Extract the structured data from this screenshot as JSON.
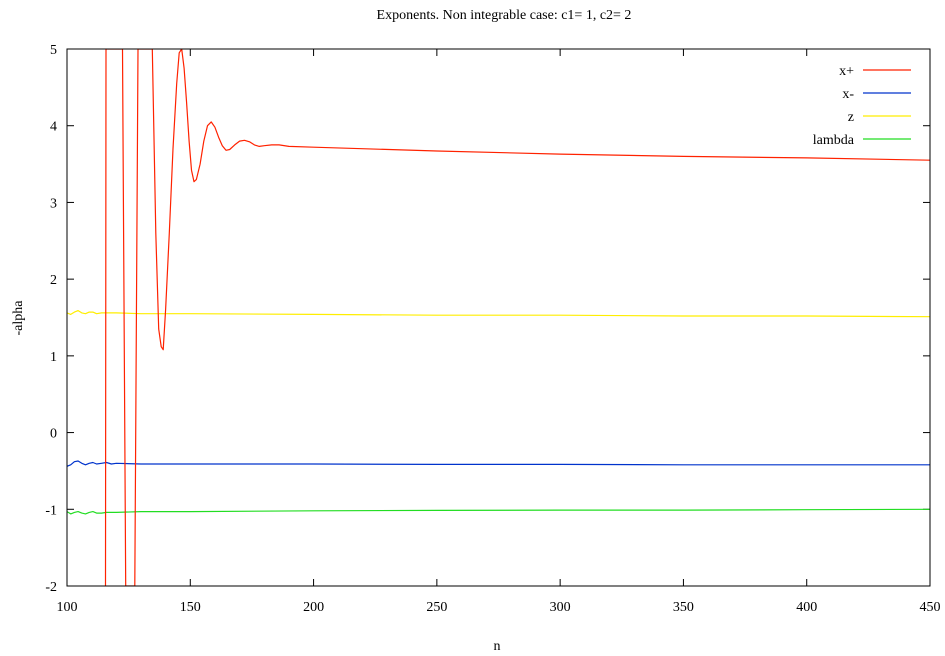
{
  "chart_data": {
    "type": "line",
    "title": "Exponents. Non integrable case: c1= 1, c2= 2",
    "xlabel": "n",
    "ylabel": "-alpha",
    "xlim": [
      100,
      450
    ],
    "ylim": [
      -2,
      5
    ],
    "xticks": [
      "100",
      "150",
      "200",
      "250",
      "300",
      "350",
      "400",
      "450"
    ],
    "yticks": [
      "-2",
      "-1",
      "0",
      "1",
      "2",
      "3",
      "4",
      "5"
    ],
    "legend_position": "top-right",
    "grid": false,
    "series": [
      {
        "name": "x+",
        "color": "#ff2200",
        "points": [
          [
            115.6,
            -2.0
          ],
          [
            115.8,
            5.0
          ],
          [
            122.5,
            5.0
          ],
          [
            123.8,
            -2.0
          ],
          [
            127.5,
            -2.0
          ],
          [
            128.8,
            5.0
          ],
          [
            134.6,
            5.0
          ],
          [
            136.0,
            2.6
          ],
          [
            137.2,
            1.35
          ],
          [
            138.2,
            1.12
          ],
          [
            139.0,
            1.08
          ],
          [
            140.0,
            1.6
          ],
          [
            141.5,
            2.6
          ],
          [
            143.0,
            3.7
          ],
          [
            144.5,
            4.55
          ],
          [
            145.5,
            4.95
          ],
          [
            146.5,
            5.0
          ],
          [
            147.5,
            4.75
          ],
          [
            148.5,
            4.3
          ],
          [
            149.5,
            3.8
          ],
          [
            150.5,
            3.42
          ],
          [
            151.5,
            3.27
          ],
          [
            152.5,
            3.3
          ],
          [
            154.0,
            3.5
          ],
          [
            155.5,
            3.8
          ],
          [
            157.0,
            4.0
          ],
          [
            158.5,
            4.05
          ],
          [
            160.0,
            3.98
          ],
          [
            161.5,
            3.85
          ],
          [
            163.0,
            3.74
          ],
          [
            164.5,
            3.68
          ],
          [
            166.0,
            3.69
          ],
          [
            168.0,
            3.75
          ],
          [
            170.0,
            3.8
          ],
          [
            172.0,
            3.81
          ],
          [
            174.0,
            3.79
          ],
          [
            176.0,
            3.75
          ],
          [
            178.0,
            3.73
          ],
          [
            180.0,
            3.74
          ],
          [
            183.0,
            3.75
          ],
          [
            186.0,
            3.75
          ],
          [
            190.0,
            3.73
          ],
          [
            200.0,
            3.72
          ],
          [
            250.0,
            3.67
          ],
          [
            300.0,
            3.63
          ],
          [
            350.0,
            3.6
          ],
          [
            400.0,
            3.58
          ],
          [
            450.0,
            3.55
          ]
        ]
      },
      {
        "name": "x-",
        "color": "#0033cc",
        "points": [
          [
            100.0,
            -0.44
          ],
          [
            101.5,
            -0.42
          ],
          [
            103.0,
            -0.38
          ],
          [
            104.5,
            -0.37
          ],
          [
            106.0,
            -0.4
          ],
          [
            107.5,
            -0.42
          ],
          [
            109.0,
            -0.4
          ],
          [
            110.5,
            -0.39
          ],
          [
            112.0,
            -0.41
          ],
          [
            114.0,
            -0.4
          ],
          [
            116.0,
            -0.39
          ],
          [
            118.0,
            -0.41
          ],
          [
            120.0,
            -0.4
          ],
          [
            130.0,
            -0.41
          ],
          [
            150.0,
            -0.41
          ],
          [
            200.0,
            -0.41
          ],
          [
            250.0,
            -0.415
          ],
          [
            300.0,
            -0.415
          ],
          [
            350.0,
            -0.42
          ],
          [
            400.0,
            -0.42
          ],
          [
            450.0,
            -0.42
          ]
        ]
      },
      {
        "name": "z",
        "color": "#ffee00",
        "points": [
          [
            100.0,
            1.56
          ],
          [
            101.5,
            1.54
          ],
          [
            103.0,
            1.57
          ],
          [
            104.5,
            1.59
          ],
          [
            106.0,
            1.56
          ],
          [
            107.5,
            1.55
          ],
          [
            109.0,
            1.57
          ],
          [
            110.5,
            1.57
          ],
          [
            112.0,
            1.55
          ],
          [
            114.0,
            1.56
          ],
          [
            116.0,
            1.56
          ],
          [
            120.0,
            1.56
          ],
          [
            130.0,
            1.55
          ],
          [
            150.0,
            1.55
          ],
          [
            200.0,
            1.54
          ],
          [
            250.0,
            1.53
          ],
          [
            300.0,
            1.53
          ],
          [
            350.0,
            1.52
          ],
          [
            400.0,
            1.52
          ],
          [
            450.0,
            1.51
          ]
        ]
      },
      {
        "name": "lambda",
        "color": "#22dd22",
        "points": [
          [
            100.0,
            -1.03
          ],
          [
            101.5,
            -1.06
          ],
          [
            103.0,
            -1.04
          ],
          [
            104.5,
            -1.03
          ],
          [
            106.0,
            -1.05
          ],
          [
            107.5,
            -1.06
          ],
          [
            109.0,
            -1.04
          ],
          [
            110.5,
            -1.03
          ],
          [
            112.0,
            -1.05
          ],
          [
            114.0,
            -1.05
          ],
          [
            116.0,
            -1.04
          ],
          [
            120.0,
            -1.04
          ],
          [
            130.0,
            -1.03
          ],
          [
            150.0,
            -1.03
          ],
          [
            200.0,
            -1.02
          ],
          [
            250.0,
            -1.015
          ],
          [
            300.0,
            -1.01
          ],
          [
            350.0,
            -1.01
          ],
          [
            400.0,
            -1.005
          ],
          [
            450.0,
            -1.0
          ]
        ]
      }
    ]
  }
}
